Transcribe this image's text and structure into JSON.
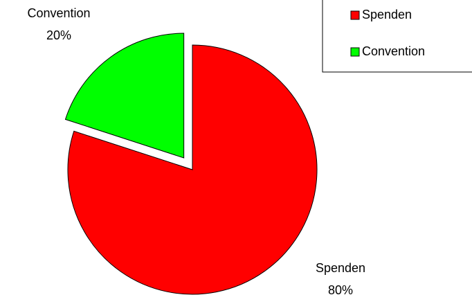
{
  "chart_data": {
    "type": "pie",
    "categories": [
      "Spenden",
      "Convention"
    ],
    "values": [
      80,
      20
    ],
    "value_labels": [
      "80%",
      "20%"
    ],
    "colors": [
      "#ff0000",
      "#00ff00"
    ],
    "legend": "top-right"
  }
}
